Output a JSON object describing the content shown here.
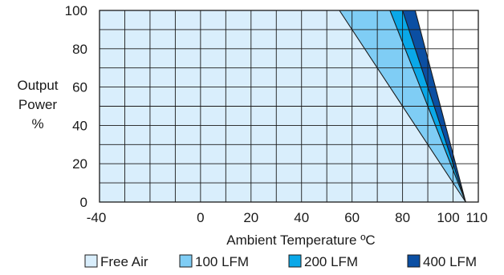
{
  "chart_data": {
    "type": "area",
    "title": "",
    "xlabel": "Ambient Temperature ºC",
    "ylabel_lines": [
      "Output",
      "Power",
      "%"
    ],
    "xlim": [
      -40,
      110
    ],
    "ylim": [
      0,
      100
    ],
    "x_ticks": [
      -40,
      0,
      20,
      40,
      60,
      80,
      100,
      110
    ],
    "y_ticks": [
      0,
      20,
      40,
      60,
      80,
      100
    ],
    "x_grid_step": 10,
    "y_grid_step": 10,
    "grid": true,
    "legend_position": "bottom",
    "series": [
      {
        "name": "Free Air",
        "color": "#d9eefc",
        "points": [
          [
            -40,
            100
          ],
          [
            55,
            100
          ],
          [
            105,
            0
          ]
        ]
      },
      {
        "name": "100 LFM",
        "color": "#7fcdf5",
        "points": [
          [
            -40,
            100
          ],
          [
            75,
            100
          ],
          [
            105,
            0
          ]
        ]
      },
      {
        "name": "200 LFM",
        "color": "#0aa8e8",
        "points": [
          [
            -40,
            100
          ],
          [
            80,
            100
          ],
          [
            105,
            0
          ]
        ]
      },
      {
        "name": "400 LFM",
        "color": "#0b4fa3",
        "points": [
          [
            -40,
            100
          ],
          [
            85,
            100
          ],
          [
            105,
            0
          ]
        ]
      }
    ]
  }
}
